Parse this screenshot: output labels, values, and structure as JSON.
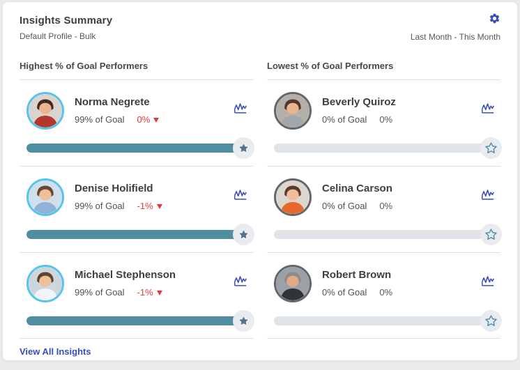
{
  "header": {
    "title": "Insights Summary",
    "subtitle": "Default Profile - Bulk",
    "period": "Last Month - This Month"
  },
  "columns": [
    {
      "heading": "Highest % of Goal Performers",
      "cards": [
        {
          "name": "Norma Negrete",
          "goal": "99% of Goal",
          "change": "0%",
          "change_color": "#e23b3b",
          "show_arrow": true,
          "progress": 99,
          "starred": true,
          "avatar": {
            "ring": "#55c3ee",
            "bg": "#d9d4cd",
            "hair": "#45291f",
            "skin": "#eab68f",
            "top": "#b2382e"
          }
        },
        {
          "name": "Denise Holifield",
          "goal": "99% of Goal",
          "change": "-1%",
          "change_color": "#e23b3b",
          "show_arrow": true,
          "progress": 99,
          "starred": true,
          "avatar": {
            "ring": "#55c3ee",
            "bg": "#cfe0ea",
            "hair": "#6a4630",
            "skin": "#efbf9a",
            "top": "#8fb3d6"
          }
        },
        {
          "name": "Michael Stephenson",
          "goal": "99% of Goal",
          "change": "-1%",
          "change_color": "#e23b3b",
          "show_arrow": true,
          "progress": 99,
          "starred": true,
          "avatar": {
            "ring": "#55c3ee",
            "bg": "#cdd6dc",
            "hair": "#5d4330",
            "skin": "#efbf9a",
            "top": "#f2f4f5"
          }
        }
      ]
    },
    {
      "heading": "Lowest % of Goal Performers",
      "cards": [
        {
          "name": "Beverly Quiroz",
          "goal": "0% of Goal",
          "change": "0%",
          "change_color": "#53575b",
          "show_arrow": false,
          "progress": 0,
          "starred": false,
          "avatar": {
            "ring": "#63676b",
            "bg": "#b5afa9",
            "hair": "#53352b",
            "skin": "#e9b48e",
            "top": "#a2a7ab"
          }
        },
        {
          "name": "Celina Carson",
          "goal": "0% of Goal",
          "change": "0%",
          "change_color": "#53575b",
          "show_arrow": false,
          "progress": 0,
          "starred": false,
          "avatar": {
            "ring": "#63676b",
            "bg": "#ddd6cd",
            "hair": "#5c3a28",
            "skin": "#efbf9a",
            "top": "#e8692b"
          }
        },
        {
          "name": "Robert Brown",
          "goal": "0% of Goal",
          "change": "0%",
          "change_color": "#53575b",
          "show_arrow": false,
          "progress": 0,
          "starred": false,
          "avatar": {
            "ring": "#63676b",
            "bg": "#9ba1a7",
            "hair": "#8a8c8e",
            "skin": "#e2aa84",
            "top": "#303335"
          }
        }
      ]
    }
  ],
  "footer": {
    "link": "View All Insights"
  },
  "colors": {
    "accent": "#3a4cb8",
    "progress_fill": "#4f8da3",
    "progress_track": "#e0e3e7",
    "divider": "#d9dfe7",
    "negative_red": "#e23b3b",
    "star_filled": "#54738f",
    "star_outline": "#4b8fad",
    "star_circle_bg": "#e9ebee",
    "highlight_ring": "#55c3ee",
    "low_ring": "#63676b"
  }
}
